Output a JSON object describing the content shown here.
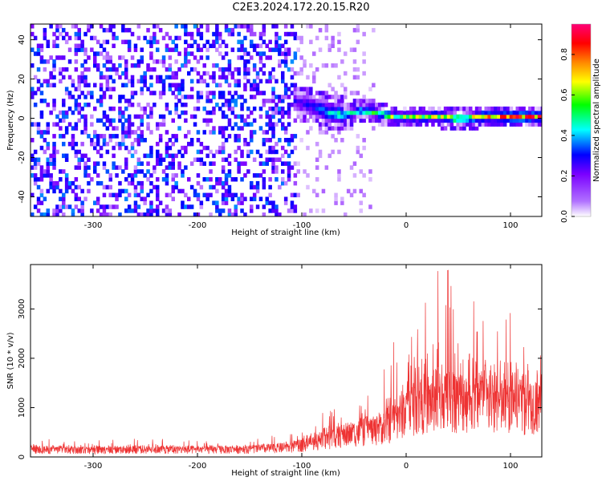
{
  "title": "C2E3.2024.172.20.15.R20",
  "chart_data": [
    {
      "type": "heatmap",
      "xlabel": "Height of straight line (km)",
      "ylabel": "Frequency (Hz)",
      "xlim": [
        -360,
        130
      ],
      "ylim": [
        -50,
        48
      ],
      "x_ticks": [
        -300,
        -200,
        -100,
        0,
        100
      ],
      "y_ticks": [
        -40,
        -20,
        0,
        20,
        40
      ],
      "colorbar": {
        "label": "Normalized spectral amplitude",
        "range": [
          0,
          0.95
        ],
        "ticks": [
          0.0,
          0.2,
          0.4,
          0.6,
          0.8
        ],
        "colors": [
          "#ffffff",
          "#7a00ff",
          "#0000ff",
          "#00ffff",
          "#00ff00",
          "#ffff00",
          "#ff8800",
          "#ff0000",
          "#ff0077"
        ]
      },
      "noise_region": {
        "x": [
          -360,
          -100
        ],
        "typical_amplitude": 0.15
      },
      "sparse_region": {
        "x": [
          -100,
          -30
        ],
        "typical_amplitude": 0.05
      },
      "signal_track": {
        "x": [
          -110,
          -90,
          -75,
          -60,
          -45,
          -30,
          -15,
          0,
          15,
          30,
          50,
          70,
          90,
          110,
          130
        ],
        "frequency": [
          8,
          5,
          2,
          1,
          3,
          2,
          0,
          0,
          0,
          0,
          -1,
          0,
          0,
          0,
          0
        ],
        "amplitude": [
          0.2,
          0.3,
          0.45,
          0.5,
          0.5,
          0.55,
          0.6,
          0.6,
          0.65,
          0.7,
          0.75,
          0.8,
          0.85,
          0.9,
          0.9
        ]
      }
    },
    {
      "type": "line",
      "xlabel": "Height of straight line (km)",
      "ylabel": "SNR (10 * v/v)",
      "xlim": [
        -360,
        130
      ],
      "ylim": [
        0,
        3900
      ],
      "x_ticks": [
        -300,
        -200,
        -100,
        0,
        100
      ],
      "y_ticks": [
        0,
        1000,
        2000,
        3000
      ],
      "color": "#ee3333",
      "series": [
        {
          "x": [
            -360,
            -300,
            -250,
            -200,
            -150,
            -110,
            -90,
            -70,
            -50,
            -30,
            -15,
            -5,
            10,
            30,
            50,
            70,
            90,
            110,
            130
          ],
          "baseline": [
            150,
            150,
            160,
            150,
            160,
            200,
            300,
            400,
            500,
            550,
            700,
            900,
            1100,
            1200,
            1200,
            1150,
            1100,
            1100,
            1150
          ],
          "peak": [
            380,
            350,
            400,
            330,
            350,
            500,
            750,
            1050,
            1150,
            1300,
            2450,
            2350,
            2800,
            3900,
            3900,
            3100,
            3050,
            2900,
            3250
          ]
        }
      ]
    }
  ]
}
